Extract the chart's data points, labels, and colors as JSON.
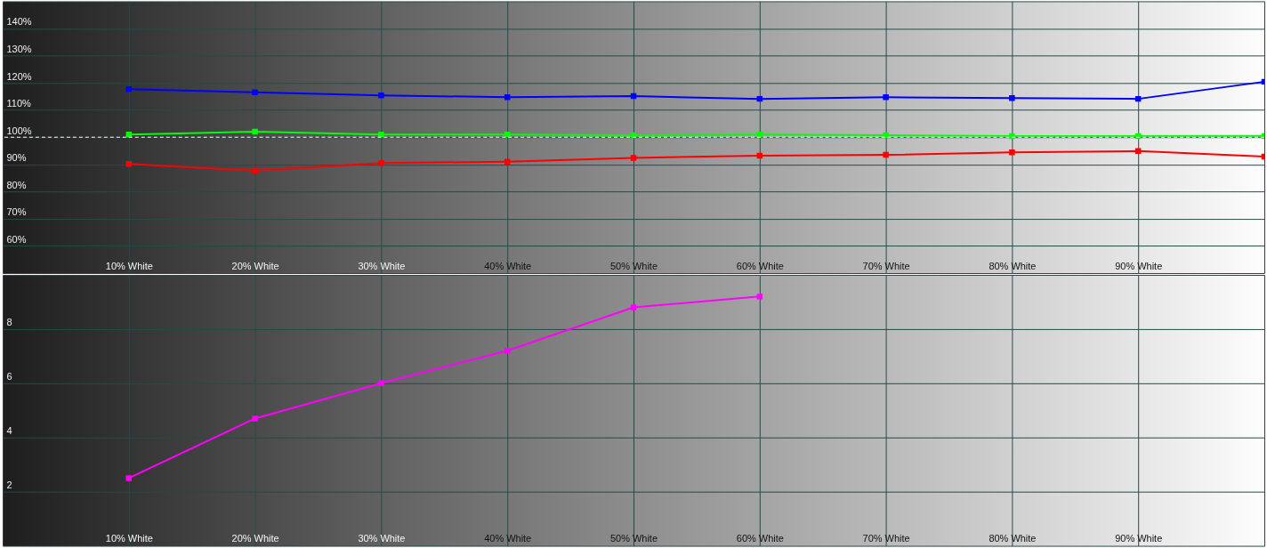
{
  "chart_data": [
    {
      "type": "line",
      "x": [
        10,
        20,
        30,
        40,
        50,
        60,
        70,
        80,
        90,
        100
      ],
      "xlim": [
        0,
        100
      ],
      "xticks": [
        {
          "value": 10,
          "label": "10% White"
        },
        {
          "value": 20,
          "label": "20% White"
        },
        {
          "value": 30,
          "label": "30% White"
        },
        {
          "value": 40,
          "label": "40% White"
        },
        {
          "value": 50,
          "label": "50% White"
        },
        {
          "value": 60,
          "label": "60% White"
        },
        {
          "value": 70,
          "label": "70% White"
        },
        {
          "value": 80,
          "label": "80% White"
        },
        {
          "value": 90,
          "label": "90% White"
        }
      ],
      "ylim": [
        50,
        150
      ],
      "yticks": [
        {
          "value": 60,
          "label": "60%"
        },
        {
          "value": 70,
          "label": "70%"
        },
        {
          "value": 80,
          "label": "80%"
        },
        {
          "value": 90,
          "label": "90%"
        },
        {
          "value": 100,
          "label": "100%"
        },
        {
          "value": 110,
          "label": "110%"
        },
        {
          "value": 120,
          "label": "120%"
        },
        {
          "value": 130,
          "label": "130%"
        },
        {
          "value": 140,
          "label": "140%"
        }
      ],
      "grid": true,
      "marker": "square",
      "ref_lines": [
        {
          "axis": "y",
          "value": 100,
          "color": "#ffffff",
          "line_style": "dashed"
        }
      ],
      "series": [
        {
          "color": "#0000ff",
          "values": [
            117.7,
            116.5,
            115.4,
            114.7,
            115.1,
            114.1,
            114.7,
            114.4,
            114.1,
            120.4
          ]
        },
        {
          "color": "#00ff00",
          "values": [
            101.0,
            102.0,
            101.0,
            101.0,
            100.7,
            101.0,
            100.7,
            100.4,
            100.4,
            100.4
          ]
        },
        {
          "color": "#ff0000",
          "values": [
            90.2,
            87.7,
            90.5,
            91.0,
            92.4,
            93.2,
            93.5,
            94.4,
            94.9,
            92.9
          ]
        }
      ]
    },
    {
      "type": "line",
      "x": [
        10,
        20,
        30,
        40,
        50,
        60
      ],
      "xlim": [
        0,
        100
      ],
      "xticks": [
        {
          "value": 10,
          "label": "10% White"
        },
        {
          "value": 20,
          "label": "20% White"
        },
        {
          "value": 30,
          "label": "30% White"
        },
        {
          "value": 40,
          "label": "40% White"
        },
        {
          "value": 50,
          "label": "50% White"
        },
        {
          "value": 60,
          "label": "60% White"
        },
        {
          "value": 70,
          "label": "70% White"
        },
        {
          "value": 80,
          "label": "80% White"
        },
        {
          "value": 90,
          "label": "90% White"
        }
      ],
      "ylim": [
        0,
        10
      ],
      "yticks": [
        2,
        4,
        6,
        8
      ],
      "grid": true,
      "marker": "square",
      "series": [
        {
          "color": "#ff00ff",
          "values": [
            2.5,
            4.7,
            6.0,
            7.2,
            8.8,
            9.2
          ]
        }
      ]
    }
  ]
}
